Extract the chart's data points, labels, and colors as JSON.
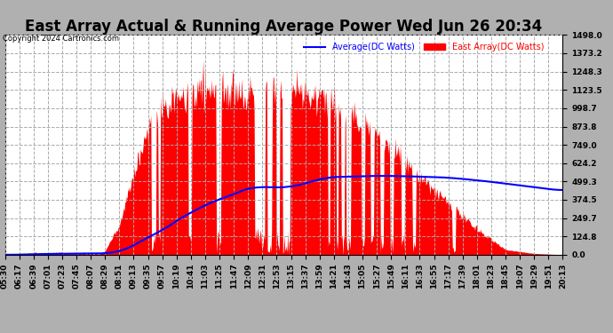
{
  "title": "East Array Actual & Running Average Power Wed Jun 26 20:34",
  "copyright": "Copyright 2024 Cartronics.com",
  "legend_avg": "Average(DC Watts)",
  "legend_east": "East Array(DC Watts)",
  "ymin": 0.0,
  "ymax": 1498.0,
  "yticks": [
    0.0,
    124.8,
    249.7,
    374.5,
    499.3,
    624.2,
    749.0,
    873.8,
    998.7,
    1123.5,
    1248.3,
    1373.2,
    1498.0
  ],
  "bg_color": "#b0b0b0",
  "plot_bg_color": "#ffffff",
  "grid_color": "#aaaaaa",
  "bar_color": "#ff0000",
  "avg_color": "#0000ff",
  "title_fontsize": 12,
  "tick_fontsize": 6.5,
  "xtick_labels": [
    "05:30",
    "06:17",
    "06:39",
    "07:01",
    "07:23",
    "07:45",
    "08:07",
    "08:29",
    "08:51",
    "09:13",
    "09:35",
    "09:57",
    "10:19",
    "10:41",
    "11:03",
    "11:25",
    "11:47",
    "12:09",
    "12:31",
    "12:53",
    "13:15",
    "13:37",
    "13:59",
    "14:21",
    "14:43",
    "15:05",
    "15:27",
    "15:49",
    "16:11",
    "16:33",
    "16:55",
    "17:17",
    "17:39",
    "18:01",
    "18:23",
    "18:45",
    "19:07",
    "19:29",
    "19:51",
    "20:13"
  ]
}
